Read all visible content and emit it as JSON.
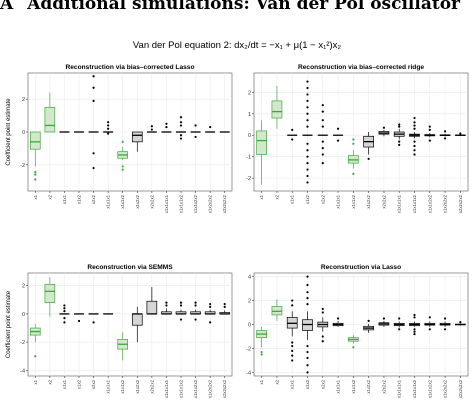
{
  "page": {
    "section_number": "A",
    "section_title": "Additional simulations: Van der Pol oscillator",
    "equation_label": "Van der Pol equation 2:",
    "equation_lhs": "dx₂/dt",
    "equation_rhs": "= −x₁ + μ(1 − x₁²)x₂"
  },
  "colors": {
    "green_fill": "#d2e7cc",
    "green_line": "#3ea83c",
    "grey_fill": "#d6d6d6",
    "black_line": "#000000",
    "panel_background": "#ffffff",
    "grid": "#e8e8e8"
  },
  "chart_data": [
    {
      "type": "box",
      "title": "Reconstruction via bias–corrected Lasso",
      "ylabel": "Coefficient point estimate",
      "ylim": [
        -3.6,
        3.6
      ],
      "yticks": [
        -2,
        0,
        2
      ],
      "categories": [
        "x[1]",
        "x[2]",
        "x[1]^x[1]",
        "x[1]^x[2]",
        "x[2]^x[2]",
        "x[1]^x[1]^x[1]",
        "x[1]^x[1]^x[2]",
        "x[1]^x[2]^x[2]",
        "x[2]^x[2]^x[2]",
        "x[1]^x[1]^x[1]^x[1]",
        "x[1]^x[1]^x[1]^x[2]",
        "x[1]^x[1]^x[2]^x[2]",
        "x[1]^x[2]^x[2]^x[2]",
        "x[2]^x[2]^x[2]^x[2]"
      ],
      "series": [
        {
          "boxes": [
            {
              "q1": -1.05,
              "median": -0.6,
              "q3": 0.0,
              "low": -2.1,
              "high": 0.0,
              "outliers": [
                -2.45,
                -2.6,
                -2.9
              ],
              "highlight": true
            },
            {
              "q1": 0.0,
              "median": 0.4,
              "q3": 1.5,
              "low": 0.0,
              "high": 2.4,
              "outliers": [],
              "highlight": true
            },
            {
              "q1": 0,
              "median": 0,
              "q3": 0,
              "low": 0,
              "high": 0,
              "outliers": [],
              "highlight": false
            },
            {
              "q1": 0,
              "median": 0,
              "q3": 0,
              "low": 0,
              "high": 0,
              "outliers": [],
              "highlight": false
            },
            {
              "q1": 0,
              "median": 0,
              "q3": 0,
              "low": 0,
              "high": 0,
              "outliers": [
                3.4,
                2.7,
                1.9,
                -1.3,
                -2.2
              ],
              "highlight": false
            },
            {
              "q1": 0,
              "median": 0,
              "q3": 0,
              "low": 0,
              "high": 0,
              "outliers": [
                0.6,
                0.4,
                0.2,
                -0.1
              ],
              "highlight": false
            },
            {
              "q1": -1.6,
              "median": -1.4,
              "q3": -1.2,
              "low": -1.7,
              "high": -0.9,
              "outliers": [
                -0.6,
                -2.1,
                -2.3
              ],
              "highlight": true
            },
            {
              "q1": -0.6,
              "median": -0.2,
              "q3": 0.0,
              "low": -1.2,
              "high": 0.0,
              "outliers": [],
              "highlight": false
            },
            {
              "q1": 0,
              "median": 0,
              "q3": 0,
              "low": 0,
              "high": 0,
              "outliers": [
                0.35,
                0.15
              ],
              "highlight": false
            },
            {
              "q1": 0,
              "median": 0,
              "q3": 0,
              "low": 0,
              "high": 0,
              "outliers": [
                0.5,
                0.3
              ],
              "highlight": false
            },
            {
              "q1": 0,
              "median": 0,
              "q3": 0,
              "low": 0,
              "high": 0,
              "outliers": [
                0.9,
                0.6,
                0.4,
                -0.2,
                -0.4
              ],
              "highlight": false
            },
            {
              "q1": 0,
              "median": 0,
              "q3": 0,
              "low": 0,
              "high": 0,
              "outliers": [
                0.4,
                -0.3
              ],
              "highlight": false
            },
            {
              "q1": 0,
              "median": 0,
              "q3": 0,
              "low": 0,
              "high": 0,
              "outliers": [
                0.3
              ],
              "highlight": false
            },
            {
              "q1": 0,
              "median": 0,
              "q3": 0,
              "low": 0,
              "high": 0,
              "outliers": [],
              "highlight": false
            }
          ]
        }
      ]
    },
    {
      "type": "box",
      "title": "Reconstruction via bias–corrected ridge",
      "ylabel": "",
      "ylim": [
        -2.6,
        2.9
      ],
      "yticks": [
        -2,
        -1,
        0,
        1,
        2
      ],
      "categories": [
        "x[1]",
        "x[2]",
        "x[1]^x[1]",
        "x[1]^x[2]",
        "x[2]^x[2]",
        "x[1]^x[1]^x[1]",
        "x[1]^x[1]^x[2]",
        "x[1]^x[2]^x[2]",
        "x[2]^x[2]^x[2]",
        "x[1]^x[1]^x[1]^x[1]",
        "x[1]^x[1]^x[1]^x[2]",
        "x[1]^x[1]^x[2]^x[2]",
        "x[1]^x[2]^x[2]^x[2]",
        "x[2]^x[2]^x[2]^x[2]"
      ],
      "series": [
        {
          "boxes": [
            {
              "q1": -0.9,
              "median": -0.25,
              "q3": 0.2,
              "low": -2.3,
              "high": 0.7,
              "outliers": [],
              "highlight": true
            },
            {
              "q1": 0.8,
              "median": 1.1,
              "q3": 1.6,
              "low": 0.3,
              "high": 2.3,
              "outliers": [],
              "highlight": true
            },
            {
              "q1": 0,
              "median": 0,
              "q3": 0,
              "low": 0,
              "high": 0,
              "outliers": [
                0.25,
                -0.2
              ],
              "highlight": false
            },
            {
              "q1": 0,
              "median": 0,
              "q3": 0,
              "low": 0,
              "high": 0,
              "outliers": [
                2.5,
                2.2,
                1.9,
                1.6,
                1.3,
                1.0,
                0.7,
                0.4,
                -0.4,
                -0.7,
                -1.0,
                -1.3,
                -1.6,
                -1.9,
                -2.2
              ],
              "highlight": false
            },
            {
              "q1": 0,
              "median": 0,
              "q3": 0,
              "low": 0,
              "high": 0,
              "outliers": [
                1.4,
                1.1,
                0.7,
                0.4,
                -0.3,
                -0.6,
                -0.9,
                -1.3
              ],
              "highlight": false
            },
            {
              "q1": 0,
              "median": 0,
              "q3": 0,
              "low": 0,
              "high": 0,
              "outliers": [
                0.3,
                -0.25
              ],
              "highlight": false
            },
            {
              "q1": -1.3,
              "median": -1.15,
              "q3": -0.95,
              "low": -1.55,
              "high": -0.7,
              "outliers": [
                -0.2,
                -0.4,
                -1.8
              ],
              "highlight": true
            },
            {
              "q1": -0.55,
              "median": -0.3,
              "q3": -0.05,
              "low": -0.9,
              "high": 0.15,
              "outliers": [
                -1.1
              ],
              "highlight": false
            },
            {
              "q1": 0.05,
              "median": 0.1,
              "q3": 0.18,
              "low": -0.05,
              "high": 0.25,
              "outliers": [
                0.35
              ],
              "highlight": false
            },
            {
              "q1": -0.05,
              "median": 0.05,
              "q3": 0.15,
              "low": -0.2,
              "high": 0.3,
              "outliers": [
                0.5,
                0.4,
                -0.3,
                -0.45
              ],
              "highlight": false
            },
            {
              "q1": -0.05,
              "median": 0,
              "q3": 0.05,
              "low": -0.15,
              "high": 0.15,
              "outliers": [
                0.8,
                0.6,
                0.45,
                0.3,
                -0.3,
                -0.5,
                -0.7,
                -0.9
              ],
              "highlight": false
            },
            {
              "q1": -0.03,
              "median": 0,
              "q3": 0.03,
              "low": -0.1,
              "high": 0.1,
              "outliers": [
                0.4,
                0.25,
                -0.25
              ],
              "highlight": false
            },
            {
              "q1": -0.02,
              "median": 0,
              "q3": 0.02,
              "low": -0.06,
              "high": 0.06,
              "outliers": [
                0.18,
                -0.15
              ],
              "highlight": false
            },
            {
              "q1": -0.01,
              "median": 0,
              "q3": 0.01,
              "low": -0.03,
              "high": 0.03,
              "outliers": [
                0.08
              ],
              "highlight": false
            }
          ]
        }
      ]
    },
    {
      "type": "box",
      "title": "Reconstruction via SEMMS",
      "ylabel": "Coefficient point estimate",
      "ylim": [
        -4.4,
        2.9
      ],
      "yticks": [
        -4,
        -2,
        0,
        2
      ],
      "categories": [
        "x[1]",
        "x[2]",
        "x[1]^x[1]",
        "x[1]^x[2]",
        "x[2]^x[2]",
        "x[1]^x[1]^x[1]",
        "x[1]^x[1]^x[2]",
        "x[1]^x[2]^x[2]",
        "x[2]^x[2]^x[2]",
        "x[1]^x[1]^x[1]^x[1]",
        "x[1]^x[1]^x[1]^x[2]",
        "x[1]^x[1]^x[2]^x[2]",
        "x[1]^x[2]^x[2]^x[2]",
        "x[2]^x[2]^x[2]^x[2]"
      ],
      "series": [
        {
          "boxes": [
            {
              "q1": -1.5,
              "median": -1.25,
              "q3": -1.0,
              "low": -2.0,
              "high": -0.7,
              "outliers": [
                -3.0
              ],
              "highlight": true
            },
            {
              "q1": 0.8,
              "median": 1.6,
              "q3": 2.1,
              "low": -0.2,
              "high": 2.6,
              "outliers": [],
              "highlight": true
            },
            {
              "q1": 0,
              "median": 0,
              "q3": 0,
              "low": 0,
              "high": 0,
              "outliers": [
                0.6,
                0.4,
                0.2,
                -0.3,
                -0.6
              ],
              "highlight": false
            },
            {
              "q1": 0,
              "median": 0,
              "q3": 0,
              "low": 0,
              "high": 0,
              "outliers": [
                -0.5
              ],
              "highlight": false
            },
            {
              "q1": 0,
              "median": 0,
              "q3": 0,
              "low": 0,
              "high": 0,
              "outliers": [
                -0.6
              ],
              "highlight": false
            },
            {
              "q1": 0,
              "median": 0,
              "q3": 0,
              "low": 0,
              "high": 0,
              "outliers": [],
              "highlight": false
            },
            {
              "q1": -2.5,
              "median": -2.15,
              "q3": -1.8,
              "low": -3.3,
              "high": -1.3,
              "outliers": [],
              "highlight": true
            },
            {
              "q1": -0.8,
              "median": 0,
              "q3": 0.0,
              "low": -2.0,
              "high": 0.5,
              "outliers": [],
              "highlight": false
            },
            {
              "q1": 0,
              "median": 0,
              "q3": 0.9,
              "low": 0,
              "high": 1.9,
              "outliers": [],
              "highlight": false
            },
            {
              "q1": 0,
              "median": 0,
              "q3": 0.15,
              "low": 0,
              "high": 0.4,
              "outliers": [
                0.8,
                0.6
              ],
              "highlight": false
            },
            {
              "q1": 0,
              "median": 0,
              "q3": 0.15,
              "low": 0,
              "high": 0.3,
              "outliers": [
                0.8,
                0.6,
                -0.4
              ],
              "highlight": false
            },
            {
              "q1": 0,
              "median": 0,
              "q3": 0.15,
              "low": 0,
              "high": 0.3,
              "outliers": [
                0.8,
                0.6,
                -0.4
              ],
              "highlight": false
            },
            {
              "q1": 0,
              "median": 0,
              "q3": 0.15,
              "low": 0,
              "high": 0.3,
              "outliers": [
                0.7,
                0.5,
                -0.6
              ],
              "highlight": false
            },
            {
              "q1": 0,
              "median": 0,
              "q3": 0.1,
              "low": 0,
              "high": 0.25,
              "outliers": [
                0.7,
                0.5
              ],
              "highlight": false
            }
          ]
        }
      ]
    },
    {
      "type": "box",
      "title": "Reconstruction via Lasso",
      "ylabel": "",
      "ylim": [
        -4.3,
        4.3
      ],
      "yticks": [
        -4,
        -2,
        0,
        2,
        4
      ],
      "categories": [
        "x[1]",
        "x[2]",
        "x[1]^x[1]",
        "x[1]^x[2]",
        "x[2]^x[2]",
        "x[1]^x[1]^x[1]",
        "x[1]^x[1]^x[2]",
        "x[1]^x[2]^x[2]",
        "x[2]^x[2]^x[2]",
        "x[1]^x[1]^x[1]^x[1]",
        "x[1]^x[1]^x[1]^x[2]",
        "x[1]^x[1]^x[2]^x[2]",
        "x[1]^x[2]^x[2]^x[2]",
        "x[2]^x[2]^x[2]^x[2]"
      ],
      "series": [
        {
          "boxes": [
            {
              "q1": -1.1,
              "median": -0.8,
              "q3": -0.5,
              "low": -1.9,
              "high": -0.2,
              "outliers": [
                -2.3,
                -2.5
              ],
              "highlight": true
            },
            {
              "q1": 0.8,
              "median": 1.1,
              "q3": 1.5,
              "low": 0.3,
              "high": 2.1,
              "outliers": [],
              "highlight": true
            },
            {
              "q1": -0.3,
              "median": 0.1,
              "q3": 0.6,
              "low": -1.0,
              "high": 1.1,
              "outliers": [
                2.0,
                1.6,
                -1.5,
                -1.8,
                -2.2,
                -2.6,
                -3.0
              ],
              "highlight": false
            },
            {
              "q1": -0.5,
              "median": 0,
              "q3": 0.4,
              "low": -1.3,
              "high": 1.1,
              "outliers": [
                4.0,
                3.3,
                2.7,
                2.2,
                1.7,
                -1.8,
                -2.3,
                -2.8,
                -3.4,
                -4.0
              ],
              "highlight": false
            },
            {
              "q1": -0.2,
              "median": 0,
              "q3": 0.2,
              "low": -0.6,
              "high": 0.6,
              "outliers": [
                1.3,
                1.0,
                -1.0,
                -1.4
              ],
              "highlight": false
            },
            {
              "q1": -0.1,
              "median": 0,
              "q3": 0.1,
              "low": -0.2,
              "high": 0.3,
              "outliers": [
                0.5
              ],
              "highlight": false
            },
            {
              "q1": -1.4,
              "median": -1.25,
              "q3": -1.1,
              "low": -1.6,
              "high": -0.9,
              "outliers": [
                -1.9
              ],
              "highlight": true
            },
            {
              "q1": -0.45,
              "median": -0.3,
              "q3": -0.15,
              "low": -0.7,
              "high": 0.05,
              "outliers": [
                0.3
              ],
              "highlight": false
            },
            {
              "q1": -0.05,
              "median": 0.05,
              "q3": 0.15,
              "low": -0.2,
              "high": 0.3,
              "outliers": [
                0.5
              ],
              "highlight": false
            },
            {
              "q1": -0.1,
              "median": 0,
              "q3": 0.1,
              "low": -0.25,
              "high": 0.25,
              "outliers": [
                0.5,
                -0.4
              ],
              "highlight": false
            },
            {
              "q1": -0.1,
              "median": 0,
              "q3": 0.1,
              "low": -0.2,
              "high": 0.25,
              "outliers": [
                0.8,
                0.6,
                -0.4,
                -0.6,
                -0.8
              ],
              "highlight": false
            },
            {
              "q1": -0.05,
              "median": 0,
              "q3": 0.1,
              "low": -0.2,
              "high": 0.25,
              "outliers": [
                0.6,
                -0.4
              ],
              "highlight": false
            },
            {
              "q1": -0.05,
              "median": 0,
              "q3": 0.1,
              "low": -0.2,
              "high": 0.25,
              "outliers": [
                0.5,
                -0.4
              ],
              "highlight": false
            },
            {
              "q1": -0.03,
              "median": 0,
              "q3": 0.03,
              "low": -0.08,
              "high": 0.08,
              "outliers": [
                0.2
              ],
              "highlight": false
            }
          ]
        }
      ]
    }
  ]
}
